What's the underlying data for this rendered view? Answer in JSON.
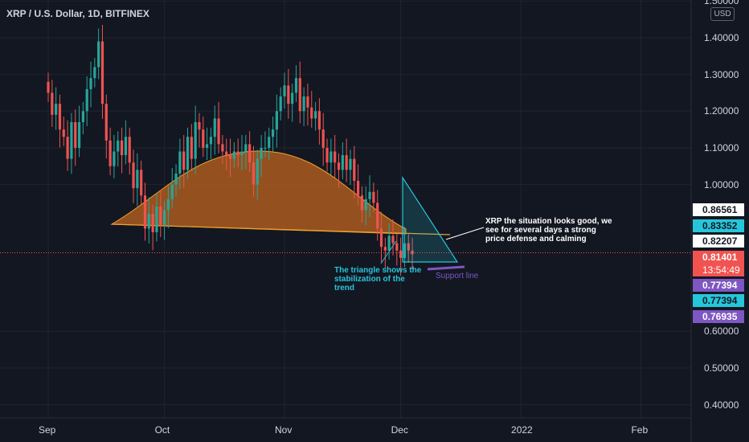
{
  "header": {
    "title": "XRP / U.S. Dollar, 1D, BITFINEX"
  },
  "currency_button": "USD",
  "colors": {
    "up": "#26a69a",
    "down": "#ef5350",
    "background": "#131722",
    "arc_fill": "#b8621f",
    "triangle": "#26c6da",
    "support": "#7e57c2"
  },
  "chart_data": {
    "type": "candlestick",
    "symbol": "XRP / U.S. Dollar",
    "interval": "1D",
    "exchange": "BITFINEX",
    "ylim": [
      0.36,
      1.52
    ],
    "y_ticks": [
      {
        "value": 1.5,
        "label": "1.50000"
      },
      {
        "value": 1.4,
        "label": "1.40000"
      },
      {
        "value": 1.3,
        "label": "1.30000"
      },
      {
        "value": 1.2,
        "label": "1.20000"
      },
      {
        "value": 1.1,
        "label": "1.10000"
      },
      {
        "value": 1.0,
        "label": "1.00000"
      },
      {
        "value": 0.6,
        "label": "0.60000"
      },
      {
        "value": 0.5,
        "label": "0.50000"
      },
      {
        "value": 0.4,
        "label": "0.40000"
      }
    ],
    "x_ticks": [
      {
        "label": "Sep",
        "day": 0
      },
      {
        "label": "Oct",
        "day": 30
      },
      {
        "label": "Nov",
        "day": 61
      },
      {
        "label": "Dec",
        "day": 91
      },
      {
        "label": "2022",
        "day": 122
      },
      {
        "label": "Feb",
        "day": 153
      }
    ],
    "price_tags": [
      {
        "label": "0.86561",
        "value": 0.86561,
        "bg": "#ffffff",
        "fg": "#131722"
      },
      {
        "label": "0.83352",
        "value": 0.83352,
        "bg": "#26c6da",
        "fg": "#131722"
      },
      {
        "label": "0.82207",
        "value": 0.82207,
        "bg": "#ffffff",
        "fg": "#131722"
      },
      {
        "label": "0.81401",
        "value": 0.81401,
        "bg": "#f05350",
        "fg": "#ffffff",
        "second_line": "13:54:49"
      },
      {
        "label": "0.77394",
        "value": 0.77394,
        "bg": "#7e57c2",
        "fg": "#ffffff"
      },
      {
        "label": "0.77394",
        "value": 0.77394,
        "bg": "#26c6da",
        "fg": "#131722"
      },
      {
        "label": "0.76935",
        "value": 0.76935,
        "bg": "#7e57c2",
        "fg": "#ffffff"
      }
    ],
    "last_price": 0.81401,
    "countdown": "13:54:49",
    "closes": [
      1.25,
      1.19,
      1.22,
      1.15,
      1.13,
      1.07,
      1.17,
      1.1,
      1.17,
      1.2,
      1.26,
      1.29,
      1.32,
      1.39,
      1.22,
      1.12,
      1.05,
      1.09,
      1.12,
      1.08,
      1.13,
      1.06,
      0.99,
      1.04,
      0.97,
      0.88,
      0.92,
      0.87,
      0.94,
      0.89,
      0.93,
      0.96,
      1.0,
      1.03,
      1.09,
      1.04,
      1.13,
      1.07,
      1.17,
      1.15,
      1.1,
      1.11,
      1.13,
      1.18,
      1.11,
      1.09,
      1.08,
      1.07,
      1.09,
      1.08,
      1.09,
      1.11,
      1.06,
      1.0,
      1.07,
      1.1,
      1.1,
      1.13,
      1.15,
      1.2,
      1.24,
      1.27,
      1.22,
      1.25,
      1.29,
      1.2,
      1.24,
      1.21,
      1.18,
      1.2,
      1.15,
      1.1,
      1.06,
      1.09,
      1.06,
      1.04,
      1.08,
      1.04,
      1.07,
      1.01,
      0.97,
      0.93,
      0.96,
      0.98,
      0.95,
      0.88,
      0.83,
      0.82,
      0.86,
      0.84,
      0.82,
      0.8,
      0.84,
      0.82,
      0.81
    ],
    "annotations": [
      {
        "text": "XRP the situation looks good, we see for several days a strong price defense and calming",
        "color": "#ffffff"
      },
      {
        "text": "The triangle shows the stabilization of the trend",
        "color": "#26c6da"
      },
      {
        "text": "Support line",
        "color": "#7e57c2"
      }
    ]
  }
}
